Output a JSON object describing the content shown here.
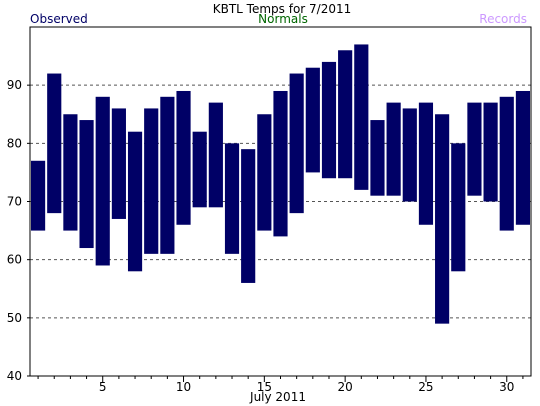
{
  "chart_data": {
    "type": "bar",
    "title": "KBTL Temps for 7/2011",
    "legend": [
      {
        "label": "Observed",
        "color": "#000066"
      },
      {
        "label": "Normals",
        "color": "#006600"
      },
      {
        "label": "Records",
        "color": "#cc99ff"
      }
    ],
    "xlabel": "July 2011",
    "x_ticks": [
      "5",
      "10",
      "15",
      "20",
      "25",
      "30"
    ],
    "y_ticks": [
      "40",
      "50",
      "60",
      "70",
      "80",
      "90"
    ],
    "ylim": [
      40,
      100
    ],
    "xlim": [
      0.5,
      31.5
    ],
    "grid": "horizontal dashed at 50, 60, 70, 80, 90",
    "bar_color": "#000066",
    "series": [
      {
        "name": "Observed",
        "days": [
          1,
          2,
          3,
          4,
          5,
          6,
          7,
          8,
          9,
          10,
          11,
          12,
          13,
          14,
          15,
          16,
          17,
          18,
          19,
          20,
          21,
          22,
          23,
          24,
          25,
          26,
          27,
          28,
          29,
          30,
          31
        ],
        "low": [
          65,
          68,
          65,
          62,
          59,
          67,
          58,
          61,
          61,
          66,
          69,
          69,
          61,
          56,
          65,
          64,
          68,
          75,
          74,
          74,
          72,
          71,
          71,
          70,
          66,
          49,
          58,
          71,
          70,
          65,
          66
        ],
        "high": [
          77,
          92,
          85,
          84,
          88,
          86,
          82,
          86,
          88,
          89,
          82,
          87,
          80,
          79,
          85,
          89,
          92,
          93,
          94,
          96,
          97,
          84,
          87,
          86,
          87,
          85,
          80,
          87,
          87,
          88,
          89
        ]
      }
    ]
  }
}
